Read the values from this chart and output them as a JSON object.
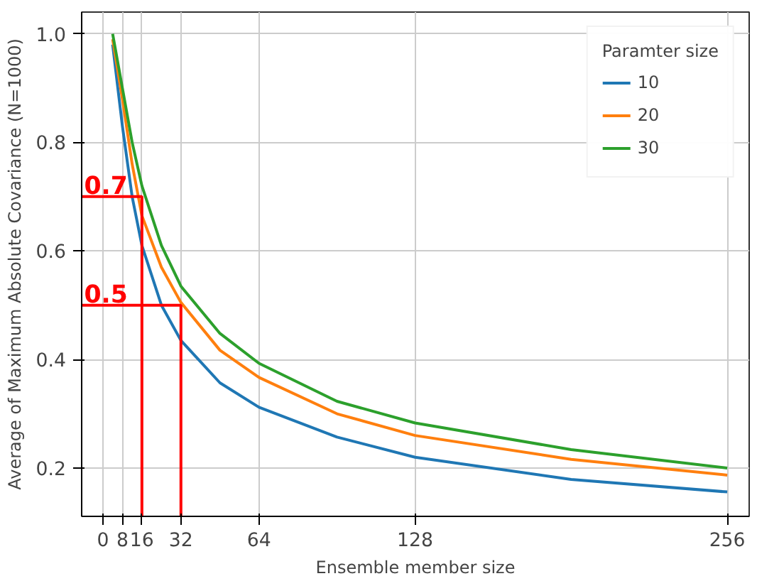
{
  "chart_data": {
    "type": "line",
    "xlabel": "Ensemble member size",
    "ylabel": "Average of Maximum Absolute Covariance (N=1000)",
    "legend_title": "Paramter size",
    "legend": "top right",
    "grid": true,
    "xlim": [
      -8.7,
      265
    ],
    "ylim": [
      0.111,
      1.04
    ],
    "xticks": [
      0,
      8,
      16,
      32,
      64,
      128,
      256
    ],
    "yticks": [
      0.2,
      0.4,
      0.6,
      0.8,
      {
        "value": 1,
        "label": "1.0"
      }
    ],
    "x": [
      4,
      8,
      12,
      16,
      24,
      32,
      48,
      64,
      96,
      128,
      192,
      256
    ],
    "series": [
      {
        "name": "10",
        "color": "#1f77b4",
        "values": [
          0.98,
          0.83,
          0.7,
          0.61,
          0.5,
          0.435,
          0.357,
          0.312,
          0.257,
          0.22,
          0.179,
          0.156
        ]
      },
      {
        "name": "20",
        "color": "#ff7f0e",
        "values": [
          0.99,
          0.88,
          0.76,
          0.665,
          0.57,
          0.505,
          0.417,
          0.367,
          0.3,
          0.26,
          0.216,
          0.187
        ]
      },
      {
        "name": "30",
        "color": "#2ca02c",
        "values": [
          1.0,
          0.9,
          0.8,
          0.72,
          0.61,
          0.535,
          0.448,
          0.393,
          0.323,
          0.283,
          0.234,
          0.2
        ]
      }
    ],
    "annotations": [
      {
        "text": "0.7",
        "x": 16,
        "y": 0.7
      },
      {
        "text": "0.5",
        "x": 32,
        "y": 0.5
      }
    ]
  }
}
